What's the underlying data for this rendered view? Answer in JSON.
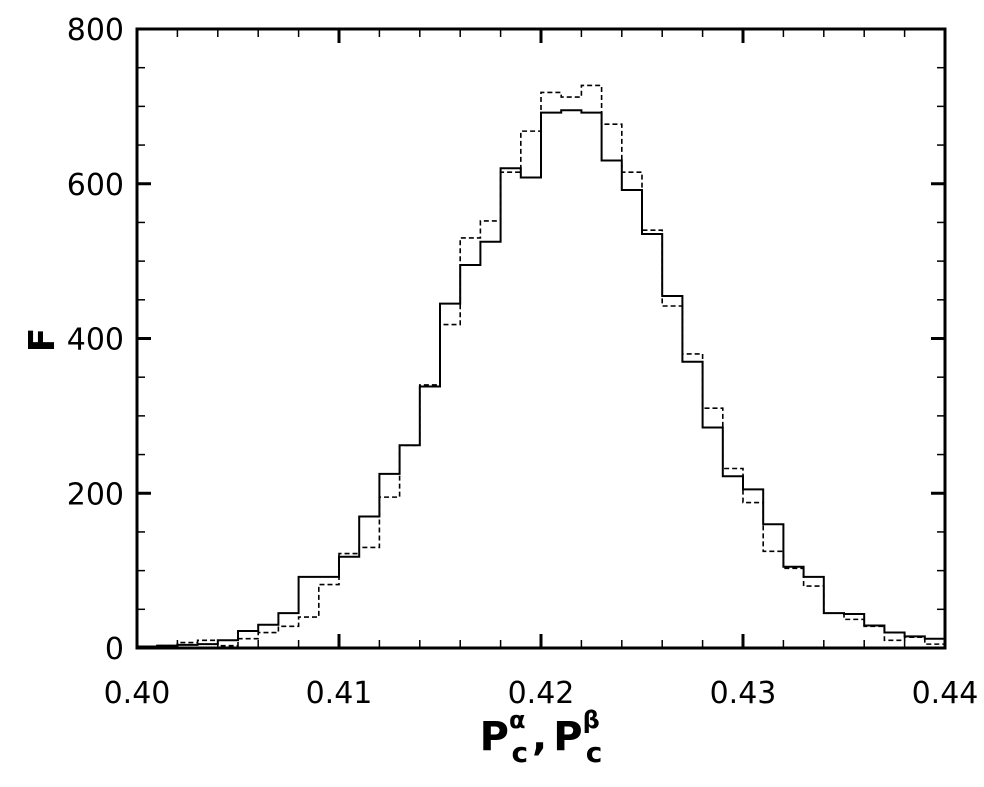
{
  "chart_data": {
    "type": "histogram",
    "bin_start": 0.4,
    "bin_width": 0.001,
    "xlim": [
      0.4,
      0.44
    ],
    "ylim": [
      0,
      800
    ],
    "x_ticks": [
      "0.40",
      "0.41",
      "0.42",
      "0.43",
      "0.44"
    ],
    "y_ticks": [
      "0",
      "200",
      "400",
      "600",
      "800"
    ],
    "ylabel": "F",
    "xlabel": {
      "part1_main": "P",
      "part1_sub": "c",
      "part1_sup": "α",
      "separator": ",",
      "part2_main": "P",
      "part2_sub": "c",
      "part2_sup": "β"
    },
    "grid": false,
    "series": [
      {
        "style": "solid",
        "values": [
          2,
          3,
          4,
          5,
          10,
          22,
          30,
          45,
          92,
          92,
          118,
          170,
          225,
          262,
          338,
          445,
          495,
          525,
          620,
          608,
          692,
          695,
          692,
          630,
          592,
          535,
          455,
          370,
          285,
          222,
          205,
          160,
          105,
          92,
          45,
          44,
          29,
          20,
          15,
          12
        ]
      },
      {
        "style": "dashed",
        "values": [
          1,
          3,
          7,
          10,
          3,
          12,
          20,
          28,
          40,
          82,
          122,
          130,
          195,
          262,
          340,
          418,
          530,
          552,
          615,
          668,
          718,
          712,
          727,
          677,
          615,
          540,
          442,
          380,
          310,
          232,
          188,
          125,
          103,
          80,
          45,
          37,
          28,
          10,
          14,
          5
        ]
      }
    ]
  }
}
